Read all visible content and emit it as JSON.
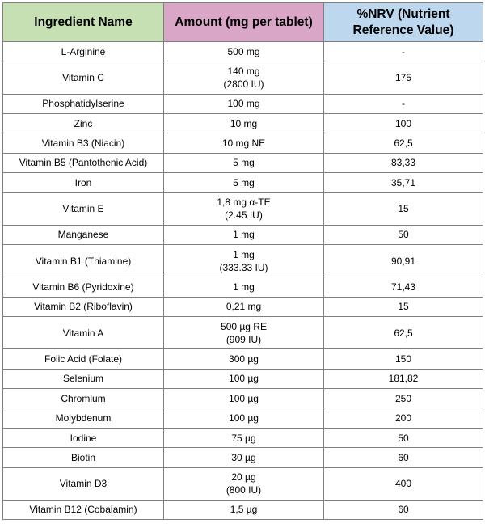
{
  "table": {
    "headers": {
      "ingredient": "Ingredient Name",
      "amount": "Amount (mg per tablet)",
      "nrv_line1": "%NRV (Nutrient",
      "nrv_line2": "Reference Value)"
    },
    "rows": [
      {
        "ingredient": "L-Arginine",
        "amount": "500 mg",
        "amount2": "",
        "nrv": "-"
      },
      {
        "ingredient": "Vitamin C",
        "amount": "140 mg",
        "amount2": "(2800 IU)",
        "nrv": "175"
      },
      {
        "ingredient": "Phosphatidylserine",
        "amount": "100 mg",
        "amount2": "",
        "nrv": "-"
      },
      {
        "ingredient": "Zinc",
        "amount": "10 mg",
        "amount2": "",
        "nrv": "100"
      },
      {
        "ingredient": "Vitamin B3 (Niacin)",
        "amount": "10 mg NE",
        "amount2": "",
        "nrv": "62,5"
      },
      {
        "ingredient": "Vitamin B5 (Pantothenic Acid)",
        "amount": "5 mg",
        "amount2": "",
        "nrv": "83,33"
      },
      {
        "ingredient": "Iron",
        "amount": "5 mg",
        "amount2": "",
        "nrv": "35,71"
      },
      {
        "ingredient": "Vitamin E",
        "amount": "1,8 mg α-TE",
        "amount2": "(2.45 IU)",
        "nrv": "15"
      },
      {
        "ingredient": "Manganese",
        "amount": "1 mg",
        "amount2": "",
        "nrv": "50"
      },
      {
        "ingredient": "Vitamin B1 (Thiamine)",
        "amount": "1 mg",
        "amount2": "(333.33 IU)",
        "nrv": "90,91"
      },
      {
        "ingredient": "Vitamin B6 (Pyridoxine)",
        "amount": "1 mg",
        "amount2": "",
        "nrv": "71,43"
      },
      {
        "ingredient": "Vitamin B2 (Riboflavin)",
        "amount": "0,21 mg",
        "amount2": "",
        "nrv": "15"
      },
      {
        "ingredient": "Vitamin A",
        "amount": "500 µg RE",
        "amount2": "(909 IU)",
        "nrv": "62,5"
      },
      {
        "ingredient": "Folic Acid (Folate)",
        "amount": "300 µg",
        "amount2": "",
        "nrv": "150"
      },
      {
        "ingredient": "Selenium",
        "amount": "100 µg",
        "amount2": "",
        "nrv": "181,82"
      },
      {
        "ingredient": "Chromium",
        "amount": "100 µg",
        "amount2": "",
        "nrv": "250"
      },
      {
        "ingredient": "Molybdenum",
        "amount": "100 µg",
        "amount2": "",
        "nrv": "200"
      },
      {
        "ingredient": "Iodine",
        "amount": "75 µg",
        "amount2": "",
        "nrv": "50"
      },
      {
        "ingredient": "Biotin",
        "amount": "30 µg",
        "amount2": "",
        "nrv": "60"
      },
      {
        "ingredient": "Vitamin D3",
        "amount": "20 µg",
        "amount2": "(800 IU)",
        "nrv": "400"
      },
      {
        "ingredient": "Vitamin B12 (Cobalamin)",
        "amount": "1,5 µg",
        "amount2": "",
        "nrv": "60"
      }
    ]
  }
}
